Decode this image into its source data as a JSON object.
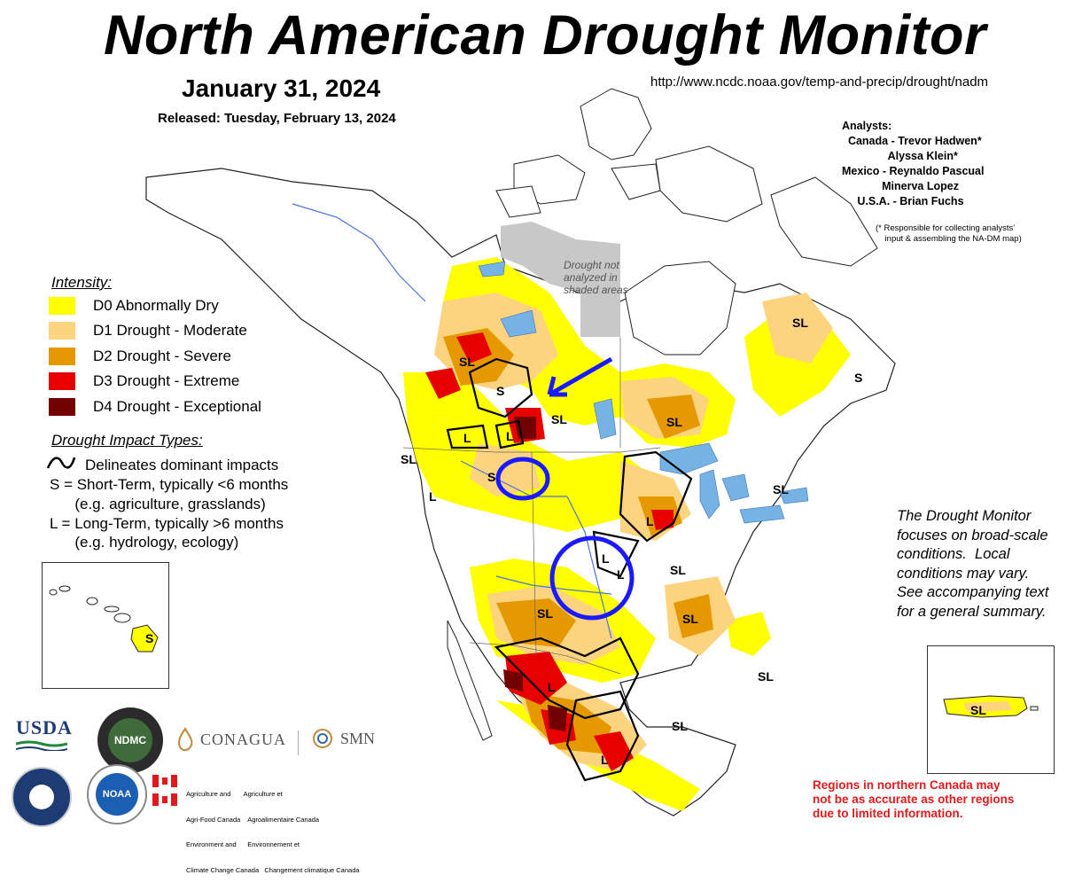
{
  "header": {
    "title": "North American Drought Monitor",
    "date": "January 31, 2024",
    "released": "Released: Tuesday, February 13, 2024",
    "url": "http://www.ncdc.noaa.gov/temp-and-precip/drought/nadm"
  },
  "analysts": {
    "heading": "Analysts:",
    "lines": [
      "  Canada - Trevor Hadwen*",
      "               Alyssa Klein*",
      "Mexico - Reynaldo Pascual",
      "             Minerva Lopez",
      "     U.S.A. - Brian Fuchs"
    ],
    "note": "(* Responsible for collecting analysts'\n    input & assembling the NA-DM map)"
  },
  "legend": {
    "intensity_title": "Intensity:",
    "items": [
      {
        "label": "D0 Abnormally Dry",
        "color": "#ffff00"
      },
      {
        "label": "D1 Drought - Moderate",
        "color": "#fcd37f"
      },
      {
        "label": "D2 Drought - Severe",
        "color": "#e69800"
      },
      {
        "label": "D3 Drought - Extreme",
        "color": "#e60000"
      },
      {
        "label": "D4 Drought - Exceptional",
        "color": "#730000"
      }
    ],
    "impact_title": "Drought Impact Types:",
    "impact_lines": [
      "Delineates dominant impacts",
      "S = Short-Term, typically <6 months",
      "      (e.g. agriculture, grasslands)",
      "L = Long-Term, typically >6 months",
      "      (e.g. hydrology, ecology)"
    ]
  },
  "map": {
    "shade_note": [
      "Drought not",
      "analyzed in",
      "shaded areas"
    ],
    "impact_labels": [
      "SL",
      "S",
      "SL",
      "L",
      "L",
      "SL",
      "S",
      "L",
      "SL",
      "SL",
      "S",
      "SL",
      "L",
      "L",
      "SL",
      "SL",
      "L",
      "SL",
      "L",
      "SL",
      "L",
      "SL"
    ],
    "hawaii_label": "S",
    "puerto_rico_label": "SL",
    "colors": {
      "water": "#74b3e3",
      "land": "#ffffff",
      "not_analyzed": "#c8c8c8",
      "annotation_blue": "#1a1aff"
    }
  },
  "monitor_note": [
    "The Drought Monitor",
    "focuses on broad-scale",
    "conditions.  Local",
    "conditions may vary.",
    "See accompanying text",
    "for a general summary."
  ],
  "red_note": [
    "Regions in northern Canada may",
    "not be as accurate as other regions",
    "due to limited information."
  ],
  "logos": {
    "usda": "USDA",
    "ndmc": "NDMC",
    "conagua": "CONAGUA",
    "smn": "SMN",
    "noaa": "NOAA",
    "canada_lines": [
      "Agriculture and       Agriculture et",
      "Agri-Food Canada    Agroalimentaire Canada",
      "Environment and      Environnement et",
      "Climate Change Canada   Changement climatique Canada"
    ]
  }
}
